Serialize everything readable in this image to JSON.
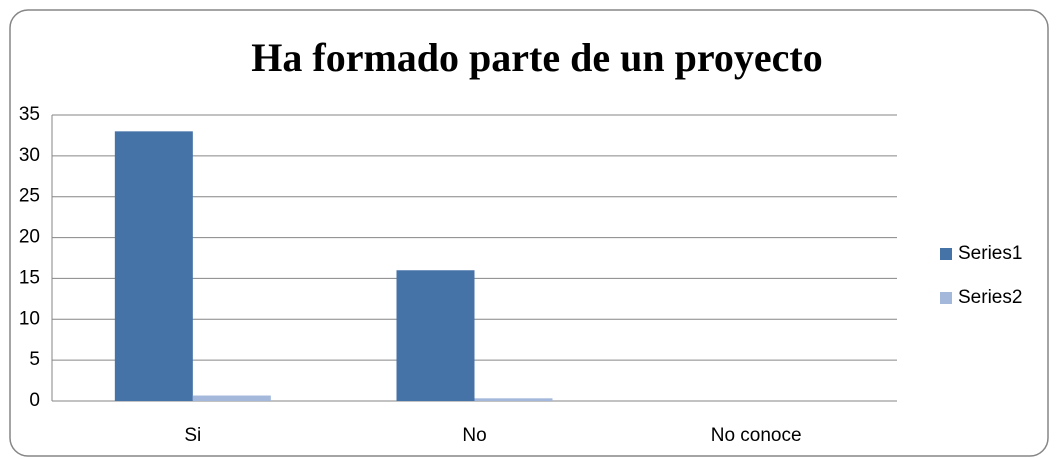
{
  "chart_data": {
    "type": "bar",
    "title": "Ha formado parte de un proyecto",
    "categories": [
      "Si",
      "No",
      "No conoce"
    ],
    "series": [
      {
        "name": "Series1",
        "color": "#4572a7",
        "values": [
          33,
          16,
          0
        ]
      },
      {
        "name": "Series2",
        "color": "#a4b8dc",
        "values": [
          0.67,
          0.33,
          0
        ]
      }
    ],
    "ylim": [
      0,
      35
    ],
    "yticks": [
      0,
      5,
      10,
      15,
      20,
      25,
      30,
      35
    ],
    "grid": true,
    "legend": "right"
  }
}
